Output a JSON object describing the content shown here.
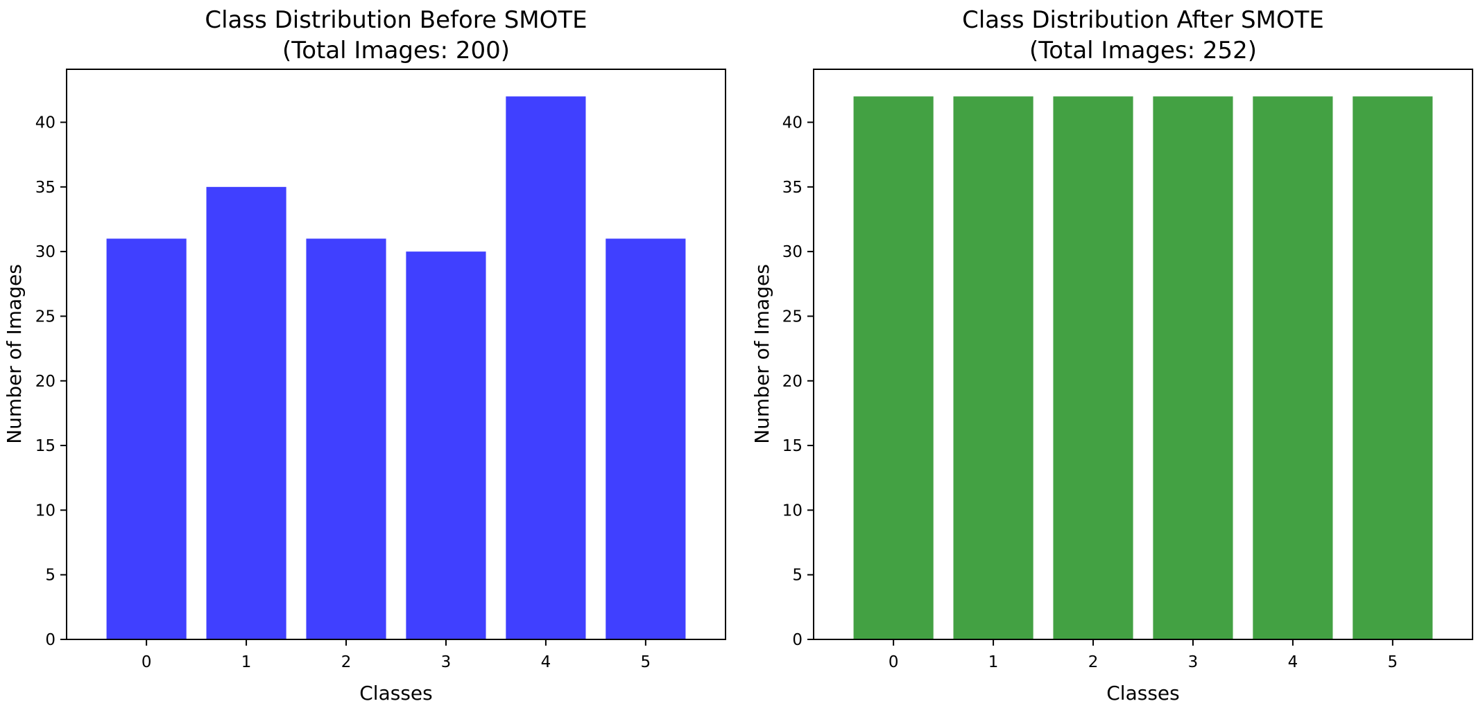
{
  "chart_data": [
    {
      "type": "bar",
      "title": "Class Distribution Before SMOTE",
      "subtitle": "(Total Images: 200)",
      "xlabel": "Classes",
      "ylabel": "Number of Images",
      "categories": [
        "0",
        "1",
        "2",
        "3",
        "4",
        "5"
      ],
      "values": [
        31,
        35,
        31,
        30,
        42,
        31
      ],
      "ylim": [
        0,
        44.1
      ],
      "yticks": [
        "0",
        "5",
        "10",
        "15",
        "20",
        "25",
        "30",
        "35",
        "40"
      ],
      "bar_color": "#4040ff",
      "grid": false,
      "legend": "none"
    },
    {
      "type": "bar",
      "title": "Class Distribution After SMOTE",
      "subtitle": "(Total Images: 252)",
      "xlabel": "Classes",
      "ylabel": "Number of Images",
      "categories": [
        "0",
        "1",
        "2",
        "3",
        "4",
        "5"
      ],
      "values": [
        42,
        42,
        42,
        42,
        42,
        42
      ],
      "ylim": [
        0,
        44.1
      ],
      "yticks": [
        "0",
        "5",
        "10",
        "15",
        "20",
        "25",
        "30",
        "35",
        "40"
      ],
      "bar_color": "#43a143",
      "grid": false,
      "legend": "none"
    }
  ]
}
